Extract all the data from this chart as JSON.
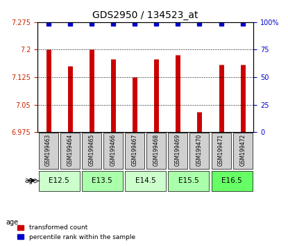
{
  "title": "GDS2950 / 134523_at",
  "samples": [
    "GSM199463",
    "GSM199464",
    "GSM199465",
    "GSM199466",
    "GSM199467",
    "GSM199468",
    "GSM199469",
    "GSM199470",
    "GSM199471",
    "GSM199472"
  ],
  "red_values": [
    7.2,
    7.155,
    7.2,
    7.175,
    7.125,
    7.175,
    7.185,
    7.03,
    7.16,
    7.16
  ],
  "blue_values": [
    100,
    100,
    100,
    100,
    100,
    100,
    100,
    90,
    100,
    100
  ],
  "ylim_left": [
    6.975,
    7.275
  ],
  "ylim_right": [
    0,
    100
  ],
  "yticks_left": [
    6.975,
    7.05,
    7.125,
    7.2,
    7.275
  ],
  "yticks_right": [
    0,
    25,
    50,
    75,
    100
  ],
  "age_groups": [
    {
      "label": "E12.5",
      "start": 0,
      "end": 2,
      "color": "#ccffcc"
    },
    {
      "label": "E13.5",
      "start": 2,
      "end": 4,
      "color": "#aaffaa"
    },
    {
      "label": "E14.5",
      "start": 4,
      "end": 6,
      "color": "#ccffcc"
    },
    {
      "label": "E15.5",
      "start": 6,
      "end": 8,
      "color": "#aaffaa"
    },
    {
      "label": "E16.5",
      "start": 8,
      "end": 10,
      "color": "#66ff66"
    }
  ],
  "bar_color": "#cc0000",
  "dot_color": "#0000cc",
  "grid_color": "#000000",
  "axis_left_color": "#cc2200",
  "axis_right_color": "#0000cc",
  "sample_box_color": "#d0d0d0",
  "legend_red": "transformed count",
  "legend_blue": "percentile rank within the sample",
  "age_label": "age"
}
